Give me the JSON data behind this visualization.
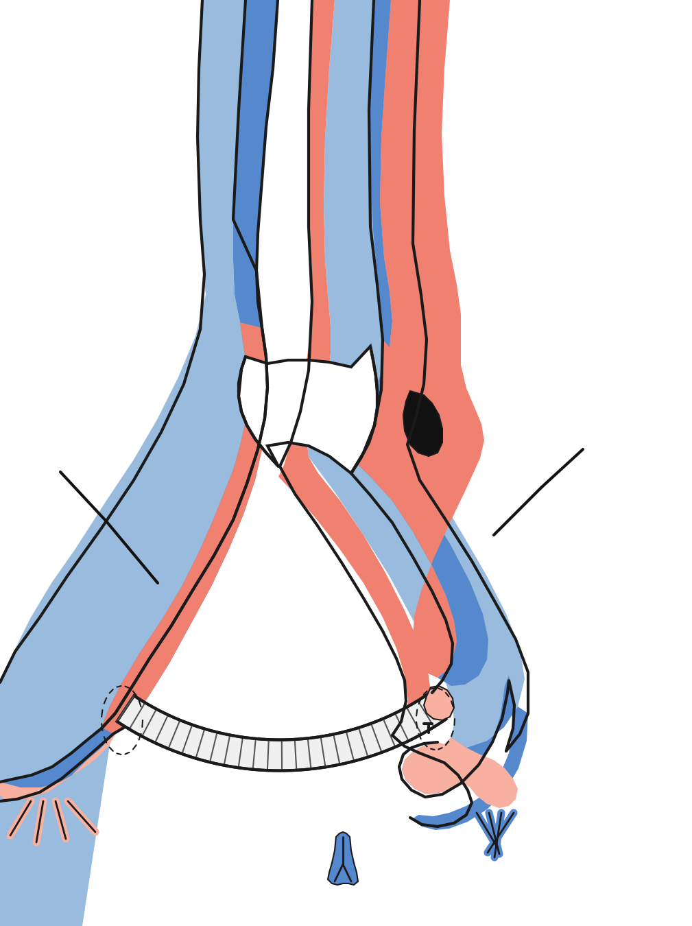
{
  "bg_color": "#ffffff",
  "art_color": "#F08070",
  "art_light": "#F8B0A0",
  "vein_color": "#5588CC",
  "vein_light": "#99BBDD",
  "graft_light": "#F0F0F0",
  "graft_mid": "#C8C8C8",
  "graft_dark": "#A0A0A0",
  "black": "#111111",
  "outline": "#1a1a1a",
  "lw_main": 3.0,
  "lw_thin": 1.8,
  "figsize": [
    10.09,
    13.5
  ],
  "dpi": 100
}
